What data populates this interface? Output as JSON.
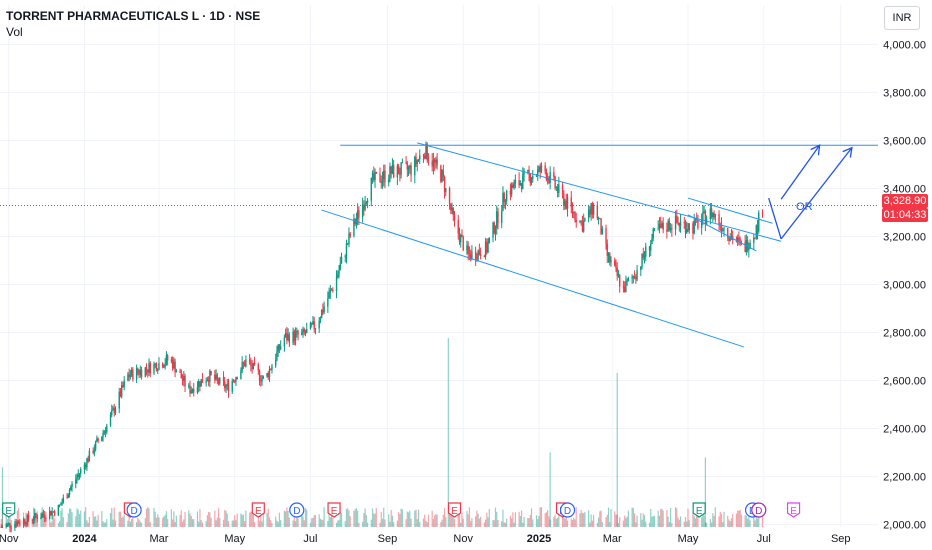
{
  "header": {
    "title": "TORRENT PHARMACEUTICALS L · 1D · NSE",
    "indicator": "Vol",
    "currency": "INR"
  },
  "price_label": {
    "value": "3,328.90",
    "countdown": "01:04:33"
  },
  "chart_data": {
    "type": "candlestick",
    "y_axis": {
      "ticks": [
        "4,000.00",
        "3,800.00",
        "3,600.00",
        "3,400.00",
        "3,200.00",
        "3,000.00",
        "2,800.00",
        "2,600.00",
        "2,400.00",
        "2,200.00",
        "2,000.00"
      ],
      "range": [
        1990,
        4060
      ]
    },
    "x_axis": {
      "ticks": [
        "Nov",
        "2024",
        "Mar",
        "May",
        "Jul",
        "Sep",
        "Nov",
        "2025",
        "Mar",
        "May",
        "Jul",
        "Sep"
      ],
      "range": [
        "2023-10-25",
        "2025-10-01"
      ]
    },
    "current_price": 3328.9,
    "price_path": [
      [
        "2023-10-26",
        1990
      ],
      [
        "2023-11-15",
        2020
      ],
      [
        "2023-12-10",
        2060
      ],
      [
        "2024-01-01",
        2250
      ],
      [
        "2024-01-20",
        2420
      ],
      [
        "2024-02-05",
        2620
      ],
      [
        "2024-02-25",
        2660
      ],
      [
        "2024-03-10",
        2690
      ],
      [
        "2024-03-25",
        2560
      ],
      [
        "2024-04-10",
        2620
      ],
      [
        "2024-04-25",
        2570
      ],
      [
        "2024-05-10",
        2680
      ],
      [
        "2024-05-25",
        2600
      ],
      [
        "2024-06-10",
        2780
      ],
      [
        "2024-06-25",
        2790
      ],
      [
        "2024-07-05",
        2830
      ],
      [
        "2024-07-20",
        3000
      ],
      [
        "2024-08-05",
        3250
      ],
      [
        "2024-08-20",
        3430
      ],
      [
        "2024-09-05",
        3470
      ],
      [
        "2024-09-20",
        3480
      ],
      [
        "2024-10-01",
        3560
      ],
      [
        "2024-10-15",
        3450
      ],
      [
        "2024-10-25",
        3250
      ],
      [
        "2024-11-05",
        3120
      ],
      [
        "2024-11-20",
        3150
      ],
      [
        "2024-12-05",
        3380
      ],
      [
        "2024-12-20",
        3440
      ],
      [
        "2025-01-05",
        3480
      ],
      [
        "2025-01-20",
        3360
      ],
      [
        "2025-02-05",
        3250
      ],
      [
        "2025-02-15",
        3330
      ],
      [
        "2025-02-25",
        3120
      ],
      [
        "2025-03-10",
        2980
      ],
      [
        "2025-03-20",
        3050
      ],
      [
        "2025-04-05",
        3220
      ],
      [
        "2025-04-20",
        3260
      ],
      [
        "2025-05-05",
        3240
      ],
      [
        "2025-05-20",
        3300
      ],
      [
        "2025-06-05",
        3200
      ],
      [
        "2025-06-15",
        3150
      ],
      [
        "2025-06-25",
        3230
      ],
      [
        "2025-06-30",
        3329
      ]
    ],
    "volume_spikes": [
      [
        "2023-10-27",
        0.12
      ],
      [
        "2024-10-20",
        0.38
      ],
      [
        "2025-01-10",
        0.15
      ],
      [
        "2025-03-05",
        0.31
      ],
      [
        "2025-05-15",
        0.14
      ]
    ],
    "drawings": {
      "resistance": [
        [
          "2024-07-25",
          3580
        ],
        [
          "2025-10-01",
          3580
        ]
      ],
      "channel_upper": [
        [
          "2024-09-25",
          3590
        ],
        [
          "2025-07-15",
          3180
        ]
      ],
      "channel_lower": [
        [
          "2024-07-10",
          3310
        ],
        [
          "2025-06-15",
          2740
        ]
      ],
      "flag_lines": [
        [
          [
            "2025-05-01",
            3360
          ],
          [
            "2025-07-08",
            3255
          ]
        ],
        [
          [
            "2025-05-01",
            3290
          ],
          [
            "2025-06-25",
            3140
          ]
        ]
      ],
      "arrows": [
        [
          [
            "2025-07-15",
            3355
          ],
          [
            "2025-08-15",
            3580
          ]
        ],
        [
          [
            "2025-07-15",
            3190
          ],
          [
            "2025-09-10",
            3570
          ]
        ]
      ],
      "connector": [
        [
          "2025-07-05",
          3360
        ],
        [
          "2025-07-15",
          3190
        ]
      ],
      "label": {
        "text": "OR",
        "at": [
          "2025-07-27",
          3310
        ]
      }
    },
    "events": [
      {
        "type": "E",
        "date": "2023-11-01",
        "color": "#089981"
      },
      {
        "type": "E",
        "date": "2024-02-07",
        "color": "#f23645"
      },
      {
        "type": "D",
        "date": "2024-02-10",
        "color": "#2962ff"
      },
      {
        "type": "E",
        "date": "2024-05-20",
        "color": "#f23645"
      },
      {
        "type": "D",
        "date": "2024-06-20",
        "color": "#2962ff"
      },
      {
        "type": "E",
        "date": "2024-07-20",
        "color": "#f23645"
      },
      {
        "type": "E",
        "date": "2024-10-25",
        "color": "#f23645"
      },
      {
        "type": "E",
        "date": "2025-01-20",
        "color": "#f23645"
      },
      {
        "type": "D",
        "date": "2025-01-24",
        "color": "#2962ff"
      },
      {
        "type": "E",
        "date": "2025-05-10",
        "color": "#089981"
      },
      {
        "type": "D",
        "date": "2025-06-22",
        "color": "#2962ff"
      },
      {
        "type": "D",
        "date": "2025-06-27",
        "color": "#9c27b0"
      },
      {
        "type": "E",
        "date": "2025-07-25",
        "color": "#e040fb"
      }
    ]
  }
}
